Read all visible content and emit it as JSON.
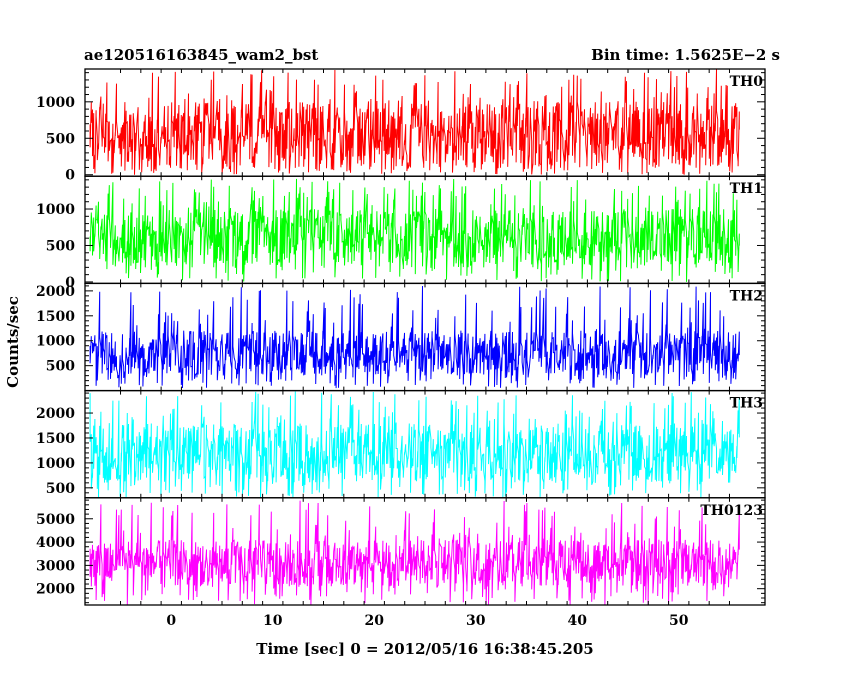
{
  "header": {
    "left_title": "ae120516163845_wam2_bst",
    "right_title": "Bin time: 1.5625E−2 s"
  },
  "chart_data": {
    "type": "line",
    "title": "ae120516163845_wam2_bst",
    "subtitle": "Bin time: 1.5625E−2 s",
    "xlabel": "Time [sec] 0 = 2012/05/16 16:38:45.205",
    "ylabel": "Counts/sec",
    "xlim": [
      -8.5,
      58.5
    ],
    "x_data_range": [
      -8,
      56
    ],
    "bin_time_s": 0.015625,
    "xticks": [
      0,
      10,
      20,
      30,
      40,
      50
    ],
    "xtick_labels": [
      "0",
      "10",
      "20",
      "30",
      "40",
      "50"
    ],
    "grid": false,
    "legend": "none",
    "panels": [
      {
        "name": "TH0",
        "color": "#ff0000",
        "ylim": [
          -20,
          1450
        ],
        "yticks": [
          0,
          500,
          1000
        ],
        "ytick_labels": [
          "0",
          "500",
          "1000"
        ],
        "band": [
          100,
          1000
        ],
        "peaks": [
          1350,
          1450
        ],
        "troughs": [
          0,
          50
        ]
      },
      {
        "name": "TH1",
        "color": "#00ff00",
        "ylim": [
          -20,
          1450
        ],
        "yticks": [
          0,
          500,
          1000
        ],
        "ytick_labels": [
          "0",
          "500",
          "1000"
        ],
        "band": [
          200,
          1000
        ],
        "peaks": [
          1300,
          1420
        ],
        "troughs": [
          0,
          80
        ]
      },
      {
        "name": "TH2",
        "color": "#0000ff",
        "ylim": [
          0,
          2150
        ],
        "yticks": [
          500,
          1000,
          1500,
          2000
        ],
        "ytick_labels": [
          "500",
          "1000",
          "1500",
          "2000"
        ],
        "band": [
          300,
          1200
        ],
        "peaks": [
          1800,
          2100
        ],
        "troughs": [
          50,
          150
        ]
      },
      {
        "name": "TH3",
        "color": "#00ffff",
        "ylim": [
          300,
          2450
        ],
        "yticks": [
          500,
          1000,
          1500,
          2000
        ],
        "ytick_labels": [
          "500",
          "1000",
          "1500",
          "2000"
        ],
        "band": [
          600,
          1800
        ],
        "peaks": [
          2300,
          2450
        ],
        "troughs": [
          300,
          450
        ]
      },
      {
        "name": "TH0123",
        "color": "#ff00ff",
        "ylim": [
          1300,
          5900
        ],
        "yticks": [
          2000,
          3000,
          4000,
          5000
        ],
        "ytick_labels": [
          "2000",
          "3000",
          "4000",
          "5000"
        ],
        "band": [
          2100,
          4100
        ],
        "peaks": [
          5200,
          5800
        ],
        "troughs": [
          1300,
          1600
        ]
      }
    ]
  }
}
